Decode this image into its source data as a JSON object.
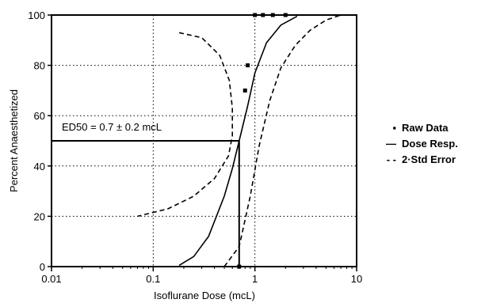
{
  "chart_data": {
    "type": "line",
    "xscale": "log",
    "xlim": [
      0.01,
      10
    ],
    "ylim": [
      0,
      100
    ],
    "grid": true,
    "legend_position": "right",
    "xlabel": "Isoflurane Dose (mcL)",
    "ylabel": "Percent Anaesthetized",
    "x_ticks": [
      0.01,
      0.1,
      1,
      10
    ],
    "x_tick_labels": [
      "0.01",
      "0.1",
      "1",
      "10"
    ],
    "y_ticks": [
      0,
      20,
      40,
      60,
      80,
      100
    ],
    "y_tick_labels": [
      "0",
      "20",
      "40",
      "60",
      "80",
      "100"
    ],
    "annotation": "ED50 = 0.7 ± 0.2 mcL",
    "ed50": {
      "x": 0.7,
      "y": 50
    },
    "legend": [
      {
        "marker": "▪",
        "label": "Raw Data"
      },
      {
        "marker": "—",
        "label": "Dose Resp."
      },
      {
        "marker": "- -",
        "label": "2·Std Error"
      }
    ],
    "series": [
      {
        "name": "Raw Data",
        "type": "scatter",
        "points": [
          {
            "x": 0.7,
            "y": 0
          },
          {
            "x": 0.85,
            "y": 80
          },
          {
            "x": 0.8,
            "y": 70
          },
          {
            "x": 1.0,
            "y": 100
          },
          {
            "x": 1.2,
            "y": 100
          },
          {
            "x": 1.5,
            "y": 100
          },
          {
            "x": 2.0,
            "y": 100
          }
        ]
      },
      {
        "name": "Dose Resp.",
        "type": "line",
        "points": [
          {
            "x": 0.18,
            "y": 0.5
          },
          {
            "x": 0.25,
            "y": 4
          },
          {
            "x": 0.35,
            "y": 12
          },
          {
            "x": 0.5,
            "y": 28
          },
          {
            "x": 0.6,
            "y": 39
          },
          {
            "x": 0.7,
            "y": 50
          },
          {
            "x": 0.85,
            "y": 64
          },
          {
            "x": 1.0,
            "y": 77
          },
          {
            "x": 1.3,
            "y": 89
          },
          {
            "x": 1.8,
            "y": 96
          },
          {
            "x": 2.6,
            "y": 99.5
          }
        ]
      },
      {
        "name": "2·Std Error",
        "type": "line",
        "dash": true,
        "points": [
          {
            "x": 0.18,
            "y": 93
          },
          {
            "x": 0.3,
            "y": 91
          },
          {
            "x": 0.45,
            "y": 84
          },
          {
            "x": 0.56,
            "y": 74
          },
          {
            "x": 0.6,
            "y": 63
          },
          {
            "x": 0.6,
            "y": 52
          },
          {
            "x": 0.55,
            "y": 44
          },
          {
            "x": 0.4,
            "y": 35
          },
          {
            "x": 0.25,
            "y": 28
          },
          {
            "x": 0.14,
            "y": 23
          },
          {
            "x": 0.07,
            "y": 20
          }
        ]
      },
      {
        "name": "2·Std Error",
        "type": "line",
        "dash": true,
        "points": [
          {
            "x": 0.5,
            "y": 0
          },
          {
            "x": 0.7,
            "y": 8
          },
          {
            "x": 0.9,
            "y": 28
          },
          {
            "x": 1.1,
            "y": 48
          },
          {
            "x": 1.4,
            "y": 66
          },
          {
            "x": 1.8,
            "y": 79
          },
          {
            "x": 2.5,
            "y": 88
          },
          {
            "x": 3.5,
            "y": 94
          },
          {
            "x": 5.0,
            "y": 98
          },
          {
            "x": 7.0,
            "y": 100
          }
        ]
      }
    ]
  }
}
